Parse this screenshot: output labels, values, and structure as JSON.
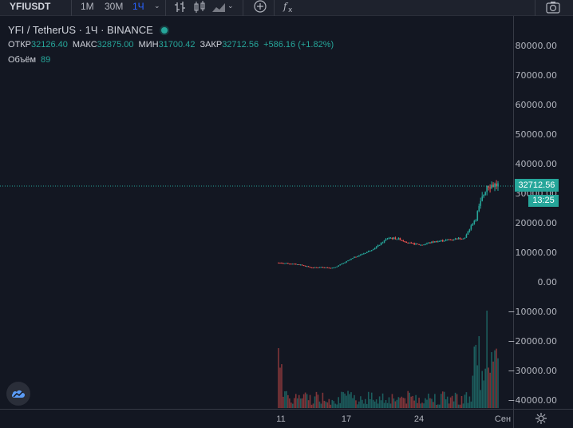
{
  "toolbar": {
    "symbol": "YFIUSDT",
    "intervals": [
      "1M",
      "30M",
      "1Ч"
    ],
    "active_interval": "1Ч",
    "icons": [
      "candles-icon",
      "bar-chart-icon",
      "area-chart-icon",
      "indicators-icon",
      "compare-icon",
      "fx-icon",
      "camera-icon"
    ]
  },
  "legend": {
    "title": "YFI / TetherUS · 1Ч · BINANCE",
    "open_label": "ОТКР",
    "open": "32126.40",
    "high_label": "МАКС",
    "high": "32875.00",
    "low_label": "МИН",
    "low": "31700.42",
    "close_label": "ЗАКР",
    "close": "32712.56",
    "change": "+586.16 (+1.82%)",
    "volume_label": "Объём",
    "volume": "89"
  },
  "price_scale": {
    "labels": [
      "80000.00",
      "70000.00",
      "60000.00",
      "50000.00",
      "40000.00",
      "30000.00",
      "20000.00",
      "10000.00",
      "0.00",
      "−10000.00",
      "−20000.00",
      "−30000.00",
      "−40000.00"
    ],
    "last_price": "32712.56",
    "countdown": "13:25"
  },
  "time_scale": {
    "labels": [
      "11",
      "17",
      "24",
      "Сен"
    ]
  },
  "colors": {
    "background": "#131722",
    "up": "#26a69a",
    "down": "#ef5350",
    "accent": "#2962ff"
  },
  "chart_data": {
    "type": "candlestick",
    "symbol": "YFI / TetherUS",
    "interval": "1Ч",
    "ylim": [
      -45000,
      85000
    ],
    "price_series": [
      {
        "x": "Aug 11",
        "y": 6500
      },
      {
        "x": "Aug 12",
        "y": 6200
      },
      {
        "x": "Aug 13",
        "y": 5800
      },
      {
        "x": "Aug 14",
        "y": 4800
      },
      {
        "x": "Aug 15",
        "y": 5000
      },
      {
        "x": "Aug 16",
        "y": 4700
      },
      {
        "x": "Aug 17",
        "y": 6500
      },
      {
        "x": "Aug 18",
        "y": 8500
      },
      {
        "x": "Aug 19",
        "y": 10000
      },
      {
        "x": "Aug 20",
        "y": 12000
      },
      {
        "x": "Aug 21",
        "y": 15000
      },
      {
        "x": "Aug 22",
        "y": 14500
      },
      {
        "x": "Aug 23",
        "y": 13000
      },
      {
        "x": "Aug 24",
        "y": 12500
      },
      {
        "x": "Aug 25",
        "y": 13500
      },
      {
        "x": "Aug 26",
        "y": 14000
      },
      {
        "x": "Aug 27",
        "y": 14500
      },
      {
        "x": "Aug 28",
        "y": 15000
      },
      {
        "x": "Aug 29",
        "y": 22000
      },
      {
        "x": "Aug 30",
        "y": 33000
      },
      {
        "x": "Aug 31",
        "y": 32712.56
      }
    ],
    "volume_peaks": "small bars, spikes near Aug 11 and end of August"
  }
}
